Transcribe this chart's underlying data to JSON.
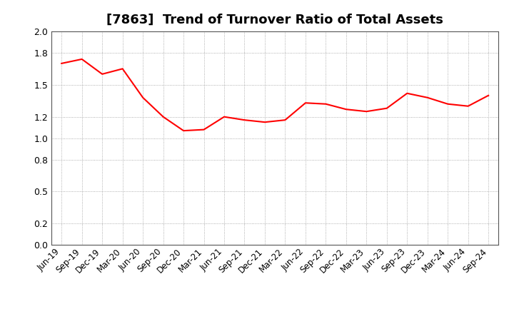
{
  "title": "[7863]  Trend of Turnover Ratio of Total Assets",
  "line_color": "#FF0000",
  "line_width": 1.5,
  "background_color": "#FFFFFF",
  "grid_color": "#999999",
  "ylim": [
    0.0,
    2.0
  ],
  "yticks": [
    0.0,
    0.2,
    0.5,
    0.8,
    1.0,
    1.2,
    1.5,
    1.8,
    2.0
  ],
  "labels": [
    "Jun-19",
    "Sep-19",
    "Dec-19",
    "Mar-20",
    "Jun-20",
    "Sep-20",
    "Dec-20",
    "Mar-21",
    "Jun-21",
    "Sep-21",
    "Dec-21",
    "Mar-22",
    "Jun-22",
    "Sep-22",
    "Dec-22",
    "Mar-23",
    "Jun-23",
    "Sep-23",
    "Dec-23",
    "Mar-24",
    "Jun-24",
    "Sep-24"
  ],
  "values": [
    1.7,
    1.74,
    1.6,
    1.65,
    1.38,
    1.2,
    1.07,
    1.08,
    1.2,
    1.17,
    1.15,
    1.17,
    1.33,
    1.32,
    1.27,
    1.25,
    1.28,
    1.42,
    1.38,
    1.32,
    1.3,
    1.4
  ],
  "title_fontsize": 13,
  "tick_fontsize": 8.5,
  "ytick_fontsize": 9
}
